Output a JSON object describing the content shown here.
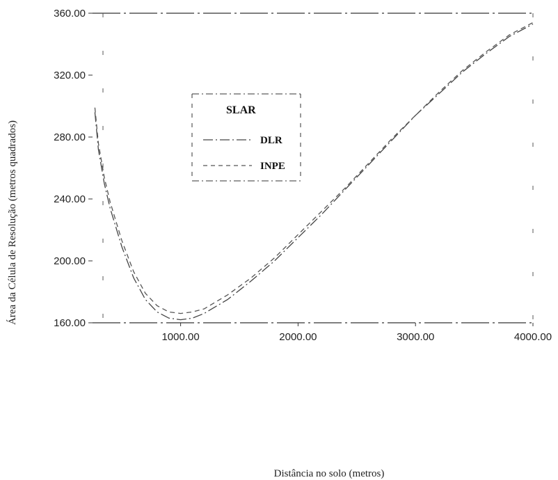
{
  "chart_data": {
    "type": "line",
    "title": "",
    "xlabel": "Distância no solo (metros)",
    "ylabel": "Área da Célula de Resolução (metros quadrados)",
    "xlim": [
      250,
      4000
    ],
    "ylim": [
      160,
      360
    ],
    "xticks": [
      {
        "value": 1000,
        "label": "1000.00"
      },
      {
        "value": 2000,
        "label": "2000.00"
      },
      {
        "value": 3000,
        "label": "3000.00"
      },
      {
        "value": 4000,
        "label": "4000.00"
      }
    ],
    "yticks": [
      {
        "value": 160,
        "label": "160.00"
      },
      {
        "value": 200,
        "label": "200.00"
      },
      {
        "value": 240,
        "label": "240.00"
      },
      {
        "value": 280,
        "label": "280.00"
      },
      {
        "value": 320,
        "label": "320.00"
      },
      {
        "value": 360,
        "label": "360.00"
      }
    ],
    "legend": {
      "title": "SLAR",
      "placement": "upper-left"
    },
    "series": [
      {
        "name": "DLR",
        "style": "dash-dot",
        "color": "#444444",
        "x": [
          270,
          300,
          350,
          400,
          500,
          600,
          700,
          800,
          900,
          1000,
          1100,
          1200,
          1400,
          1600,
          1800,
          2000,
          2200,
          2400,
          2600,
          2800,
          3000,
          3200,
          3400,
          3600,
          3800,
          4000
        ],
        "y": [
          296,
          272,
          250,
          234,
          209,
          189,
          175,
          167,
          163,
          162,
          163,
          166,
          175,
          187,
          200,
          215,
          230,
          246,
          262,
          278,
          294,
          308,
          322,
          334,
          345,
          353
        ]
      },
      {
        "name": "INPE",
        "style": "dashed",
        "color": "#555555",
        "x": [
          270,
          300,
          350,
          400,
          500,
          600,
          700,
          800,
          900,
          1000,
          1100,
          1200,
          1400,
          1600,
          1800,
          2000,
          2200,
          2400,
          2600,
          2800,
          3000,
          3200,
          3400,
          3600,
          3800,
          4000
        ],
        "y": [
          299,
          276,
          254,
          238,
          213,
          193,
          179,
          171,
          167,
          166,
          167,
          169,
          178,
          189,
          202,
          217,
          232,
          247,
          263,
          279,
          294,
          309,
          323,
          335,
          346,
          354
        ]
      }
    ]
  }
}
